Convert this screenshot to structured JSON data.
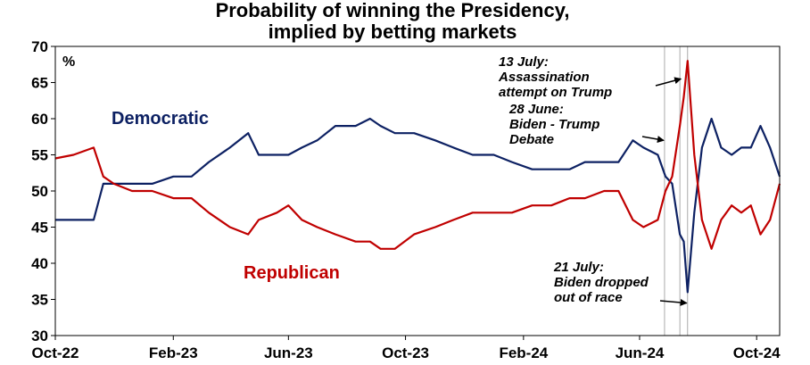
{
  "chart_data": {
    "type": "line",
    "title": [
      "Probability of winning the Presidency,",
      "implied by betting markets"
    ],
    "unit_label": "%",
    "ylim": [
      30,
      70
    ],
    "yticks": [
      30,
      35,
      40,
      45,
      50,
      55,
      60,
      65,
      70
    ],
    "x_start": "2022-10-01",
    "x_end": "2024-10-25",
    "xticks": [
      {
        "date": "2022-10-01",
        "label": "Oct-22"
      },
      {
        "date": "2023-02-01",
        "label": "Feb-23"
      },
      {
        "date": "2023-06-01",
        "label": "Jun-23"
      },
      {
        "date": "2023-10-01",
        "label": "Oct-23"
      },
      {
        "date": "2024-02-01",
        "label": "Feb-24"
      },
      {
        "date": "2024-06-01",
        "label": "Jun-24"
      },
      {
        "date": "2024-10-01",
        "label": "Oct-24"
      }
    ],
    "series": [
      {
        "name": "Democratic",
        "color": "#0d2163",
        "x": [
          "2022-10-01",
          "2022-10-20",
          "2022-11-10",
          "2022-11-20",
          "2022-12-01",
          "2022-12-20",
          "2023-01-10",
          "2023-02-01",
          "2023-02-20",
          "2023-03-10",
          "2023-04-01",
          "2023-04-20",
          "2023-05-01",
          "2023-05-20",
          "2023-06-01",
          "2023-06-15",
          "2023-07-01",
          "2023-07-20",
          "2023-08-10",
          "2023-08-25",
          "2023-09-05",
          "2023-09-20",
          "2023-10-10",
          "2023-11-01",
          "2023-11-20",
          "2023-12-10",
          "2024-01-01",
          "2024-01-20",
          "2024-02-10",
          "2024-03-01",
          "2024-03-20",
          "2024-04-05",
          "2024-04-25",
          "2024-05-10",
          "2024-05-25",
          "2024-06-05",
          "2024-06-20",
          "2024-06-28",
          "2024-07-05",
          "2024-07-13",
          "2024-07-17",
          "2024-07-21",
          "2024-07-28",
          "2024-08-05",
          "2024-08-15",
          "2024-08-25",
          "2024-09-05",
          "2024-09-15",
          "2024-09-25",
          "2024-10-05",
          "2024-10-15",
          "2024-10-25"
        ],
        "values": [
          46,
          46,
          46,
          51,
          51,
          51,
          51,
          52,
          52,
          54,
          56,
          58,
          55,
          55,
          55,
          56,
          57,
          59,
          59,
          60,
          59,
          58,
          58,
          57,
          56,
          55,
          55,
          54,
          53,
          53,
          53,
          54,
          54,
          54,
          57,
          56,
          55,
          52,
          51,
          44,
          43,
          36,
          47,
          56,
          60,
          56,
          55,
          56,
          56,
          59,
          56,
          52
        ]
      },
      {
        "name": "Republican",
        "color": "#c00000",
        "x": [
          "2022-10-01",
          "2022-10-20",
          "2022-11-10",
          "2022-11-20",
          "2022-12-01",
          "2022-12-20",
          "2023-01-10",
          "2023-02-01",
          "2023-02-20",
          "2023-03-10",
          "2023-04-01",
          "2023-04-20",
          "2023-05-01",
          "2023-05-20",
          "2023-06-01",
          "2023-06-15",
          "2023-07-01",
          "2023-07-20",
          "2023-08-10",
          "2023-08-25",
          "2023-09-05",
          "2023-09-20",
          "2023-10-10",
          "2023-11-01",
          "2023-11-20",
          "2023-12-10",
          "2024-01-01",
          "2024-01-20",
          "2024-02-10",
          "2024-03-01",
          "2024-03-20",
          "2024-04-05",
          "2024-04-25",
          "2024-05-10",
          "2024-05-25",
          "2024-06-05",
          "2024-06-20",
          "2024-06-28",
          "2024-07-05",
          "2024-07-13",
          "2024-07-17",
          "2024-07-21",
          "2024-07-28",
          "2024-08-05",
          "2024-08-15",
          "2024-08-25",
          "2024-09-05",
          "2024-09-15",
          "2024-09-25",
          "2024-10-05",
          "2024-10-15",
          "2024-10-25"
        ],
        "values": [
          54.5,
          55,
          56,
          52,
          51,
          50,
          50,
          49,
          49,
          47,
          45,
          44,
          46,
          47,
          48,
          46,
          45,
          44,
          43,
          43,
          42,
          42,
          44,
          45,
          46,
          47,
          47,
          47,
          48,
          48,
          49,
          49,
          50,
          50,
          46,
          45,
          46,
          50,
          52,
          59,
          63,
          68,
          55,
          46,
          42,
          46,
          48,
          47,
          48,
          44,
          46,
          51
        ]
      }
    ],
    "series_labels": [
      {
        "text": "Democratic",
        "color": "#0d2163"
      },
      {
        "text": "Republican",
        "color": "#c00000"
      }
    ],
    "event_lines": [
      "2024-06-27",
      "2024-07-13",
      "2024-07-21"
    ],
    "annotations": [
      {
        "lines": [
          "13 July:",
          "Assassination",
          "attempt on Trump"
        ],
        "target_date": "2024-07-14",
        "target_value": 65.5
      },
      {
        "lines": [
          "28 June:",
          "Biden - Trump",
          "Debate"
        ],
        "target_date": "2024-06-26",
        "target_value": 57
      },
      {
        "lines": [
          "21 July:",
          "Biden dropped",
          "out of race"
        ],
        "target_date": "2024-07-20",
        "target_value": 34.5
      }
    ]
  }
}
